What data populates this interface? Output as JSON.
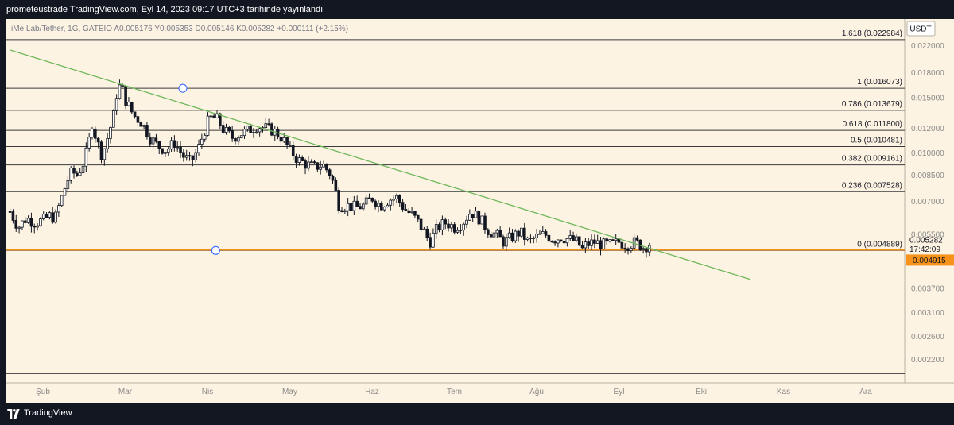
{
  "header": {
    "title": "prometeustrade TradingView.com, Eyl 14, 2023 09:17 UTC+3 tarihinde yayınlandı"
  },
  "footer": {
    "brand": "TradingView"
  },
  "colors": {
    "background": "#fdf3e3",
    "trendline": "#6fb85a",
    "price_line": "#f7931a",
    "candle": "#131722",
    "fib_line": "#3a3a3a"
  },
  "chart_data": {
    "type": "candlestick",
    "symbol_info": {
      "name": "iMe Lab/Tether, 1G, GATEIO",
      "open_label": "A",
      "open": "0.005176",
      "high_label": "Y",
      "high": "0.005353",
      "low_label": "D",
      "low": "0.005146",
      "close_label": "K",
      "close": "0.005282",
      "change": "+0.000111 (+2.15%)"
    },
    "currency": "USDT",
    "scale": "log",
    "ylim": [
      0.00185,
      0.0255
    ],
    "y_ticks": [
      "0.022000",
      "0.018000",
      "0.015000",
      "0.012000",
      "0.010000",
      "0.008500",
      "0.007000",
      "0.005500",
      "0.003700",
      "0.003100",
      "0.002600",
      "0.002200"
    ],
    "x_ticks": [
      "Şub",
      "Mar",
      "Nis",
      "May",
      "Haz",
      "Tem",
      "Ağu",
      "Eyl",
      "Eki",
      "Kas",
      "Ara"
    ],
    "fib_levels": [
      {
        "ratio": "1.618",
        "price": 0.022984,
        "label": "1.618 (0.022984)"
      },
      {
        "ratio": "1",
        "price": 0.016073,
        "label": "1 (0.016073)"
      },
      {
        "ratio": "0.786",
        "price": 0.013679,
        "label": "0.786 (0.013679)"
      },
      {
        "ratio": "0.618",
        "price": 0.0118,
        "label": "0.618 (0.011800)"
      },
      {
        "ratio": "0.5",
        "price": 0.010481,
        "label": "0.5 (0.010481)"
      },
      {
        "ratio": "0.382",
        "price": 0.009161,
        "label": "0.382 (0.009161)"
      },
      {
        "ratio": "0.236",
        "price": 0.007528,
        "label": "0.236 (0.007528)"
      },
      {
        "ratio": "0",
        "price": 0.004889,
        "label": "0 (0.004889)"
      }
    ],
    "extra_horizontal_line": 0.00198,
    "trendline": {
      "from": {
        "month": -0.4,
        "price": 0.0213
      },
      "to": {
        "month": 8.6,
        "price": 0.00395
      }
    },
    "current_price": {
      "value": "0.005282",
      "countdown": "17:42:09"
    },
    "horizontal_price_line": {
      "value": 0.004915,
      "label": "0.004915"
    },
    "fib_anchor_handles": [
      {
        "month": 1.7,
        "price": 0.016073
      },
      {
        "month": 2.1,
        "price": 0.004889
      }
    ],
    "price_path": [
      [
        -0.4,
        0.0065
      ],
      [
        -0.3,
        0.0058
      ],
      [
        -0.2,
        0.0062
      ],
      [
        -0.1,
        0.006
      ],
      [
        0.0,
        0.0061
      ],
      [
        0.08,
        0.0063
      ],
      [
        0.15,
        0.0062
      ],
      [
        0.22,
        0.0071
      ],
      [
        0.3,
        0.0082
      ],
      [
        0.35,
        0.0087
      ],
      [
        0.42,
        0.0085
      ],
      [
        0.5,
        0.0094
      ],
      [
        0.55,
        0.0105
      ],
      [
        0.6,
        0.0125
      ],
      [
        0.65,
        0.011
      ],
      [
        0.72,
        0.0098
      ],
      [
        0.8,
        0.0115
      ],
      [
        0.87,
        0.0135
      ],
      [
        0.9,
        0.0158
      ],
      [
        0.95,
        0.0165
      ],
      [
        1.0,
        0.0148
      ],
      [
        1.05,
        0.014
      ],
      [
        1.1,
        0.0132
      ],
      [
        1.2,
        0.0125
      ],
      [
        1.3,
        0.0112
      ],
      [
        1.4,
        0.0105
      ],
      [
        1.5,
        0.0102
      ],
      [
        1.6,
        0.0108
      ],
      [
        1.7,
        0.0098
      ],
      [
        1.8,
        0.0093
      ],
      [
        1.9,
        0.0105
      ],
      [
        2.0,
        0.0125
      ],
      [
        2.05,
        0.013
      ],
      [
        2.12,
        0.0128
      ],
      [
        2.2,
        0.0118
      ],
      [
        2.3,
        0.0112
      ],
      [
        2.4,
        0.0115
      ],
      [
        2.5,
        0.0118
      ],
      [
        2.6,
        0.0122
      ],
      [
        2.7,
        0.012
      ],
      [
        2.8,
        0.0118
      ],
      [
        2.9,
        0.0112
      ],
      [
        3.0,
        0.0102
      ],
      [
        3.1,
        0.0095
      ],
      [
        3.2,
        0.0092
      ],
      [
        3.3,
        0.009
      ],
      [
        3.4,
        0.0092
      ],
      [
        3.5,
        0.0085
      ],
      [
        3.6,
        0.0068
      ],
      [
        3.7,
        0.0068
      ],
      [
        3.8,
        0.0067
      ],
      [
        3.9,
        0.0068
      ],
      [
        4.0,
        0.0072
      ],
      [
        4.1,
        0.0068
      ],
      [
        4.2,
        0.0071
      ],
      [
        4.3,
        0.0072
      ],
      [
        4.4,
        0.0066
      ],
      [
        4.5,
        0.0063
      ],
      [
        4.6,
        0.0058
      ],
      [
        4.7,
        0.0052
      ],
      [
        4.8,
        0.0058
      ],
      [
        4.9,
        0.006
      ],
      [
        5.0,
        0.0058
      ],
      [
        5.1,
        0.006
      ],
      [
        5.2,
        0.0065
      ],
      [
        5.3,
        0.0062
      ],
      [
        5.4,
        0.0057
      ],
      [
        5.5,
        0.0055
      ],
      [
        5.6,
        0.0052
      ],
      [
        5.7,
        0.0054
      ],
      [
        5.8,
        0.0056
      ],
      [
        5.9,
        0.0052
      ],
      [
        6.0,
        0.0054
      ],
      [
        6.1,
        0.0055
      ],
      [
        6.2,
        0.0053
      ],
      [
        6.3,
        0.0054
      ],
      [
        6.4,
        0.0053
      ],
      [
        6.5,
        0.0052
      ],
      [
        6.55,
        0.0049
      ],
      [
        6.6,
        0.0051
      ],
      [
        6.7,
        0.0052
      ],
      [
        6.8,
        0.0051
      ],
      [
        6.9,
        0.0051
      ],
      [
        7.0,
        0.0052
      ],
      [
        7.1,
        0.0051
      ],
      [
        7.2,
        0.0052
      ],
      [
        7.3,
        0.005
      ],
      [
        7.4,
        0.0052
      ]
    ]
  }
}
